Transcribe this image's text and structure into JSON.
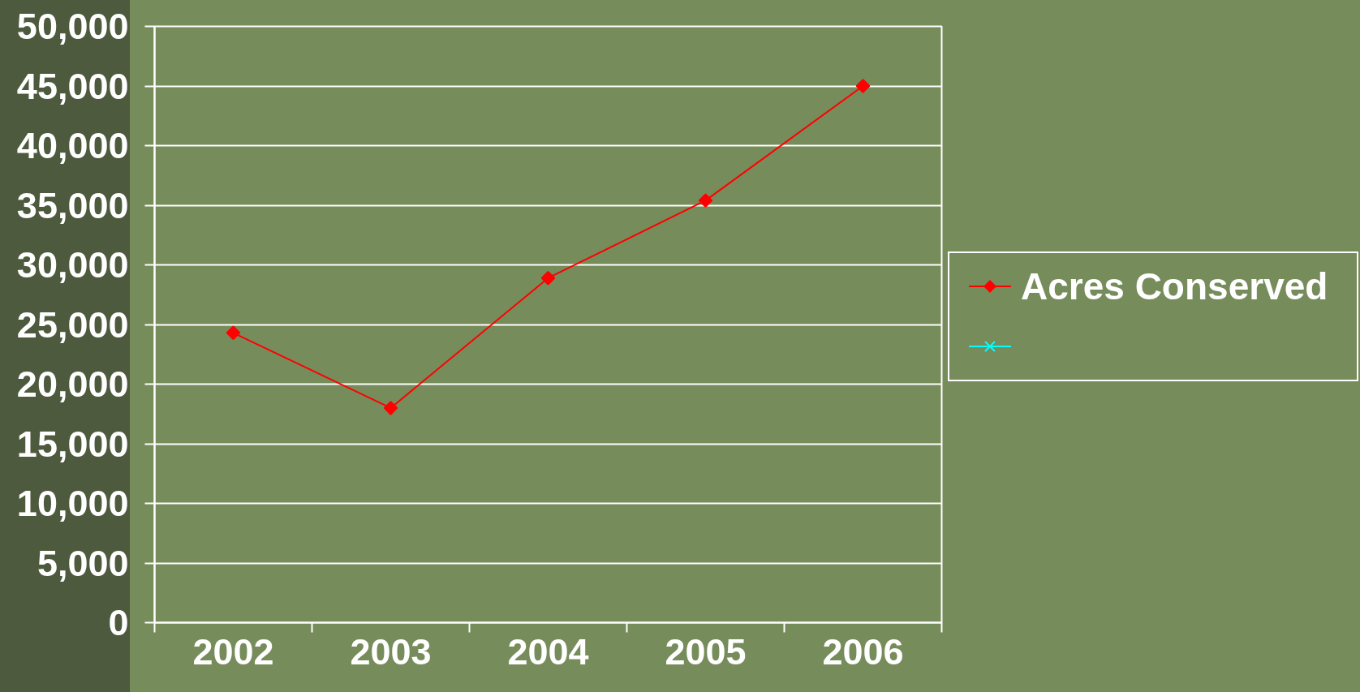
{
  "chart_data": {
    "type": "line",
    "categories": [
      "2002",
      "2003",
      "2004",
      "2005",
      "2006"
    ],
    "series": [
      {
        "name": "Acres Conserved",
        "color": "#ff0000",
        "marker": "diamond",
        "values": [
          24300,
          18000,
          28900,
          35400,
          45000
        ]
      },
      {
        "color": "#00ffff",
        "marker": "cross",
        "values": [
          null,
          null,
          null,
          null,
          null
        ]
      }
    ],
    "ylim": [
      0,
      50000
    ],
    "yticks": [
      {
        "value": 0,
        "label": "0"
      },
      {
        "value": 5000,
        "label": "5,000"
      },
      {
        "value": 10000,
        "label": "10,000"
      },
      {
        "value": 15000,
        "label": "15,000"
      },
      {
        "value": 20000,
        "label": "20,000"
      },
      {
        "value": 25000,
        "label": "25,000"
      },
      {
        "value": 30000,
        "label": "30,000"
      },
      {
        "value": 35000,
        "label": "35,000"
      },
      {
        "value": 40000,
        "label": "40,000"
      },
      {
        "value": 45000,
        "label": "45,000"
      },
      {
        "value": 50000,
        "label": "50,000"
      }
    ],
    "grid": "y",
    "legend": "right"
  }
}
